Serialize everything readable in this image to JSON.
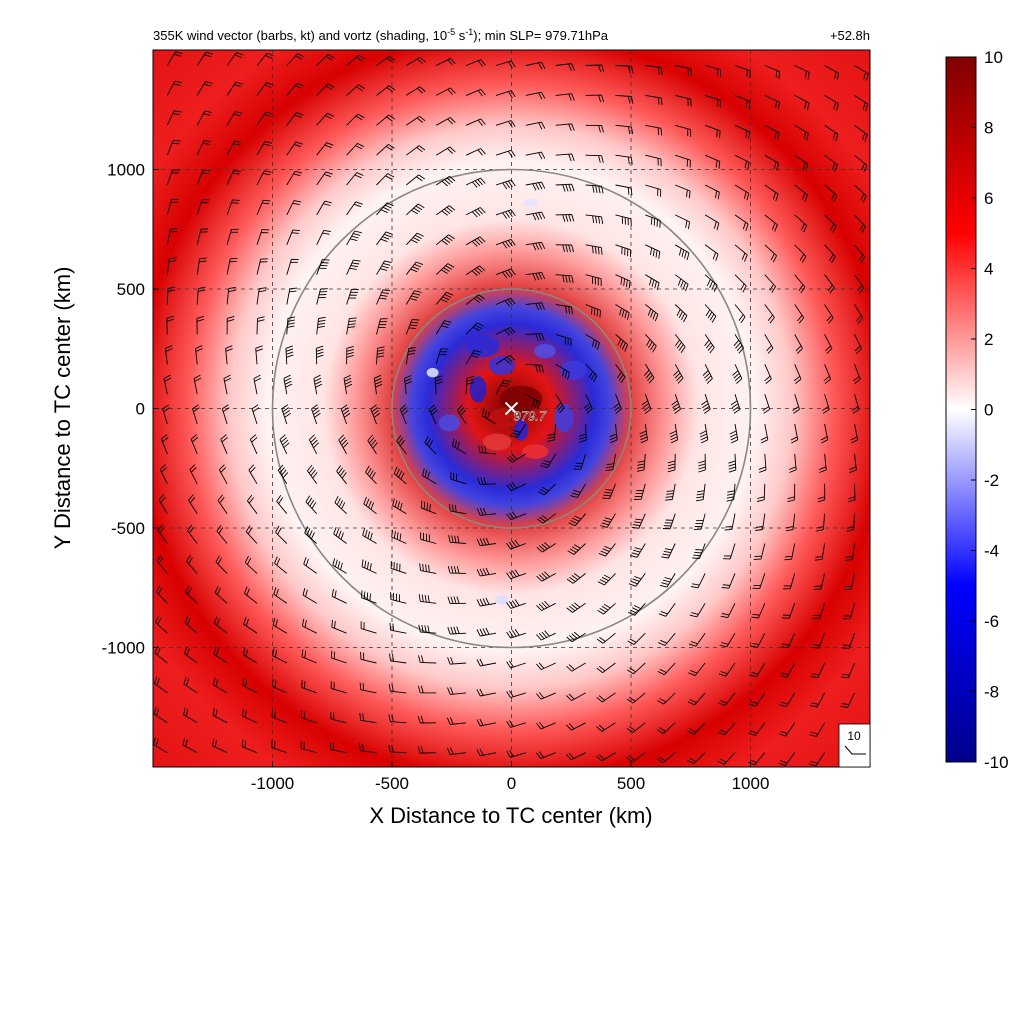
{
  "header": {
    "title_prefix": "355K wind vector (barbs, kt) and vortz (shading, 10",
    "title_exp1": "-5",
    "title_mid": " s",
    "title_exp2": "-1",
    "title_suffix": "); min SLP= 979.71hPa",
    "forecast_hour": "+52.8h"
  },
  "chart_data": {
    "type": "heatmap",
    "xlabel": "X Distance to TC center (km)",
    "ylabel": "Y Distance to TC center (km)",
    "xlim": [
      -1500,
      1500
    ],
    "ylim": [
      -1500,
      1500
    ],
    "x_ticks": [
      -1000,
      -500,
      0,
      500,
      1000
    ],
    "y_ticks": [
      -1000,
      -500,
      0,
      500,
      1000
    ],
    "x_tick_labels": [
      "-1000",
      "-500",
      "0",
      "500",
      "1000"
    ],
    "y_tick_labels": [
      "-1000",
      "-500",
      "0",
      "500",
      "1000"
    ],
    "grid": true,
    "colorbar": {
      "min": -10,
      "max": 10,
      "ticks": [
        10,
        8,
        6,
        4,
        2,
        0,
        -2,
        -4,
        -6,
        -8,
        -10
      ],
      "tick_labels": [
        "10",
        "8",
        "6",
        "4",
        "2",
        "0",
        "-2",
        "-4",
        "-6",
        "-8",
        "-10"
      ],
      "colors": [
        "#00008b",
        "#0000ff",
        "#ffffff",
        "#ff0000",
        "#7f0000"
      ]
    },
    "range_circles_km": [
      500,
      1000
    ],
    "center_marker": {
      "x": 0,
      "y": 0,
      "label": "979.7"
    },
    "reference_barb": {
      "label": "10",
      "speed_kt": 10
    },
    "vorticity_features": [
      {
        "radius_km": 0,
        "value": 10,
        "desc": "core"
      },
      {
        "radius_km": 300,
        "value": -6,
        "desc": "inner negative ring"
      },
      {
        "radius_km": 480,
        "value": 6,
        "desc": "inner positive ring"
      },
      {
        "radius_km": 800,
        "value": 1,
        "desc": "moat"
      },
      {
        "radius_km": 1300,
        "value": 8,
        "desc": "outer positive ring"
      }
    ]
  }
}
